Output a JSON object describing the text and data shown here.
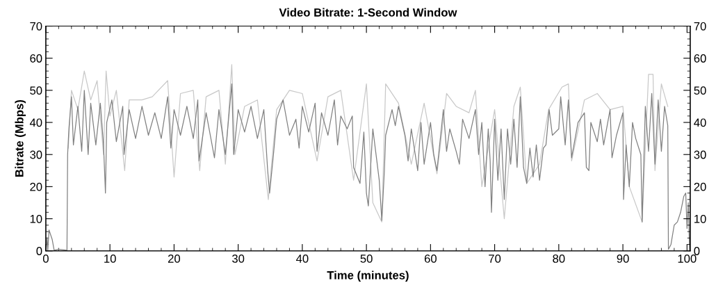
{
  "chart_data": {
    "type": "line",
    "title": "Video Bitrate: 1-Second Window",
    "xlabel": "Time (minutes)",
    "ylabel": "Bitrate (Mbps)",
    "xlim": [
      0,
      100.5
    ],
    "xticks": [
      0,
      10,
      20,
      30,
      40,
      50,
      60,
      70,
      80,
      90,
      100
    ],
    "ylim": [
      0,
      70
    ],
    "yticks": [
      0,
      10,
      20,
      30,
      40,
      50,
      60,
      70
    ],
    "y2lim": [
      0,
      70
    ],
    "y2ticks": [
      0,
      10,
      20,
      30,
      40,
      50,
      60,
      70
    ],
    "grid": false,
    "marker": "none",
    "line_style": "solid",
    "series": [
      {
        "color": "#c8c8c8",
        "x": [
          3.5,
          4,
          5,
          6,
          7,
          8,
          9,
          9.4,
          10,
          11,
          12.3,
          13,
          15,
          16.6,
          19,
          20,
          21,
          23,
          24,
          25,
          27,
          28,
          29,
          29.5,
          31,
          33,
          34.7,
          36,
          38,
          40,
          42.3,
          44,
          46,
          48,
          50,
          51,
          52.4,
          53,
          55,
          57,
          59,
          61,
          62.5,
          64,
          66,
          67,
          68,
          70,
          71.5,
          73,
          74,
          75,
          77,
          78.4,
          80.5,
          81.5,
          82,
          84,
          86,
          88,
          90,
          91,
          93,
          94,
          94.7,
          95,
          96,
          97
        ],
        "values": [
          32,
          50,
          44,
          56,
          47,
          53,
          30,
          56,
          42,
          50,
          25,
          47,
          47,
          48,
          53,
          23,
          49,
          50,
          25,
          48,
          50,
          27,
          58,
          30,
          45,
          47,
          16,
          44,
          50,
          49,
          28,
          48,
          50,
          22,
          52,
          15,
          9,
          52,
          46,
          27,
          46,
          24,
          49,
          45,
          43,
          50,
          20,
          44,
          10,
          45,
          51,
          21,
          27,
          44,
          51,
          52,
          28,
          47,
          49,
          44,
          45,
          20,
          9,
          55,
          55,
          25,
          52,
          45
        ]
      },
      {
        "color": "#808080",
        "x": [
          0,
          0.2,
          0.3,
          0.5,
          1,
          1.3,
          2,
          3.3,
          3.4,
          3.6,
          4,
          4.3,
          5,
          5.6,
          6,
          6.6,
          7,
          7.8,
          8.5,
          9,
          9.3,
          9.5,
          10.3,
          11,
          12,
          12.2,
          13,
          14,
          15,
          16,
          17,
          18,
          19,
          19.5,
          20,
          21,
          22,
          23,
          23.7,
          23.9,
          25,
          26.3,
          27,
          28,
          29,
          29.3,
          30,
          31,
          32,
          33,
          34,
          34.6,
          34.9,
          35.5,
          36,
          37,
          38,
          39,
          39.5,
          40,
          41,
          42,
          42.3,
          43,
          44,
          45,
          45.5,
          46,
          47,
          47.8,
          48,
          49,
          49.6,
          50,
          50.3,
          51,
          51.5,
          52,
          52.4,
          52.8,
          53,
          54,
          54.5,
          55,
          56,
          56.5,
          57,
          58,
          58.5,
          59,
          60,
          60.5,
          61,
          62,
          62.5,
          63,
          64,
          64.5,
          65,
          66,
          67,
          67.5,
          68,
          68.5,
          69,
          69.3,
          69.5,
          70,
          70.5,
          71,
          71.5,
          72,
          72.5,
          73,
          73.5,
          74,
          74.5,
          75,
          75.5,
          76,
          76.5,
          77,
          77.6,
          78,
          78.5,
          79,
          80,
          80.3,
          81,
          81.5,
          82,
          83,
          84,
          84.3,
          84.7,
          85,
          86,
          86.5,
          87,
          88,
          88.3,
          89,
          90,
          90.1,
          90.5,
          91,
          91.5,
          92,
          92.8,
          93,
          93.5,
          94,
          94.5,
          95,
          95.5,
          96,
          96.5,
          97,
          97.1,
          97.5,
          98,
          98.5,
          99,
          99.5,
          99.8,
          100,
          100.2,
          100.4
        ],
        "values": [
          0,
          4,
          0,
          6.5,
          3.5,
          0.2,
          0.5,
          0.2,
          30,
          38,
          48,
          33,
          45,
          31,
          50,
          30,
          46,
          33,
          46,
          33,
          18,
          40,
          47,
          34,
          45,
          30,
          44,
          35,
          45,
          36,
          43,
          35,
          48,
          32,
          44,
          36,
          45,
          35,
          47,
          28,
          43,
          29,
          44,
          30,
          52,
          30,
          44,
          37,
          45,
          35,
          44,
          25,
          18,
          30,
          41,
          47,
          36,
          41,
          32,
          45,
          37,
          46,
          31,
          43,
          36,
          47,
          33,
          42,
          38,
          42,
          26,
          21,
          37,
          18,
          14,
          38,
          30,
          22,
          9.5,
          25,
          36,
          44,
          39,
          45,
          36,
          28,
          38,
          25,
          40,
          27,
          40,
          30,
          25,
          44,
          31,
          38,
          31,
          27,
          41,
          35,
          44,
          30,
          40,
          20,
          38,
          28,
          12,
          41,
          22,
          38,
          16,
          38,
          27,
          41,
          26,
          48,
          26,
          21,
          32,
          23,
          33,
          22,
          32,
          33,
          44,
          36,
          38,
          48,
          33,
          47,
          29,
          40,
          43,
          26,
          25,
          40,
          34,
          41,
          33,
          44,
          29,
          36,
          43,
          16,
          33,
          20,
          40,
          35,
          30,
          9,
          45,
          31,
          49,
          27,
          47,
          31,
          45,
          39,
          0.5,
          2,
          8,
          9,
          12,
          17,
          18,
          7,
          15,
          0
        ]
      }
    ]
  }
}
